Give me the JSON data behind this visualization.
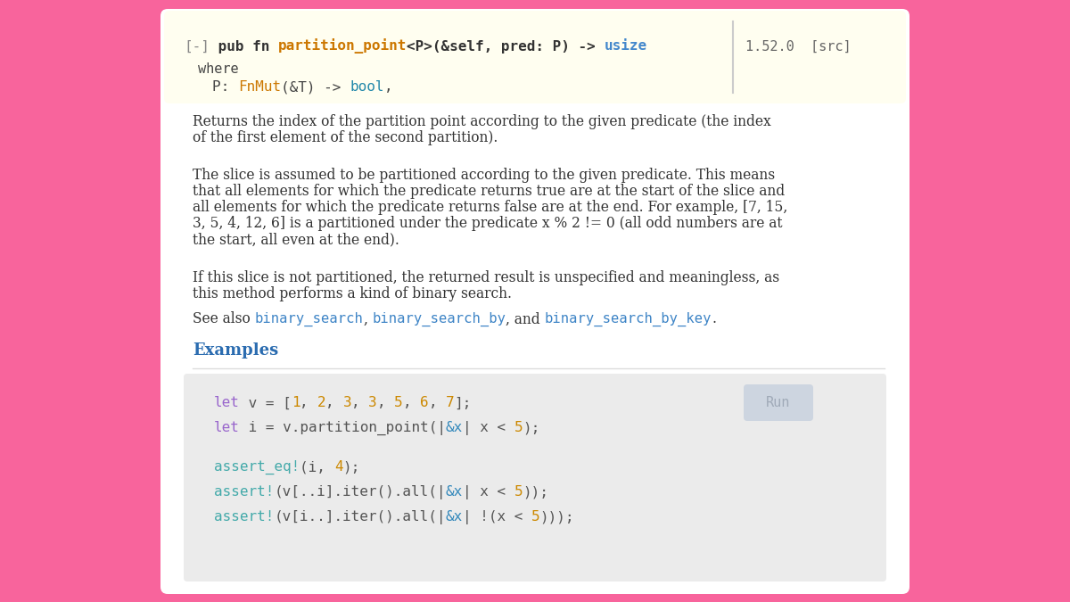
{
  "bg_color": "#f8649c",
  "card_color": "#ffffff",
  "header_bg": "#fffef0",
  "code_bg": "#ebebeb",
  "run_btn_color": "#cdd5e0",
  "run_btn_text": "#a0aab8",
  "text_color": "#333333",
  "link_color": "#3d84c6",
  "examples_color": "#2b6cb0",
  "keyword_color": "#cc7a00",
  "type_color": "#4488cc",
  "fn_color": "#cc7a00",
  "bool_color": "#2288aa",
  "grey_color": "#666666",
  "purple_color": "#9966cc",
  "teal_color": "#44aaaa",
  "cyan_color": "#3388bb",
  "num_color": "#cc8800",
  "version_color": "#666666",
  "divider_color": "#cccccc",
  "rule_color": "#dddddd",
  "desc1": "Returns the index of the partition point according to the given predicate (the index\nof the first element of the second partition).",
  "desc2a": "The slice is assumed to be partitioned according to the given predicate. This means",
  "desc2b": "that all elements for which the predicate returns true are at the start of the slice and",
  "desc2c": "all elements for which the predicate returns false are at the end. For example, [7, 15,",
  "desc2d": "3, 5, 4, 12, 6] is a partitioned under the predicate x % 2 != 0 (all odd numbers are at",
  "desc2e": "the start, all even at the end).",
  "desc3a": "If this slice is not partitioned, the returned result is unspecified and meaningless, as",
  "desc3b": "this method performs a kind of binary search.",
  "examples_label": "Examples"
}
